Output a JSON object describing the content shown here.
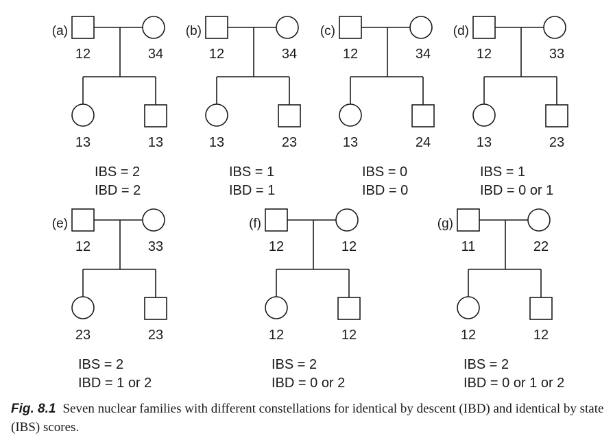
{
  "figure": {
    "families": [
      {
        "label": "(a)",
        "father": "12",
        "mother": "34",
        "daughter": "13",
        "son": "13",
        "ibs": "IBS = 2",
        "ibd": "IBD = 2"
      },
      {
        "label": "(b)",
        "father": "12",
        "mother": "34",
        "daughter": "13",
        "son": "23",
        "ibs": "IBS = 1",
        "ibd": "IBD = 1"
      },
      {
        "label": "(c)",
        "father": "12",
        "mother": "34",
        "daughter": "13",
        "son": "24",
        "ibs": "IBS = 0",
        "ibd": "IBD = 0"
      },
      {
        "label": "(d)",
        "father": "12",
        "mother": "33",
        "daughter": "13",
        "son": "23",
        "ibs": "IBS = 1",
        "ibd": "IBD = 0 or 1"
      },
      {
        "label": "(e)",
        "father": "12",
        "mother": "33",
        "daughter": "23",
        "son": "23",
        "ibs": "IBS = 2",
        "ibd": "IBD = 1 or 2"
      },
      {
        "label": "(f)",
        "father": "12",
        "mother": "12",
        "daughter": "12",
        "son": "12",
        "ibs": "IBS = 2",
        "ibd": "IBD = 0 or 2"
      },
      {
        "label": "(g)",
        "father": "11",
        "mother": "22",
        "daughter": "12",
        "son": "12",
        "ibs": "IBS = 2",
        "ibd": "IBD = 0 or 1 or 2"
      }
    ]
  },
  "caption": {
    "label": "Fig. 8.1",
    "text": "Seven nuclear families with different constellations for identical by descent (IBD) and identical by state (IBS) scores."
  }
}
